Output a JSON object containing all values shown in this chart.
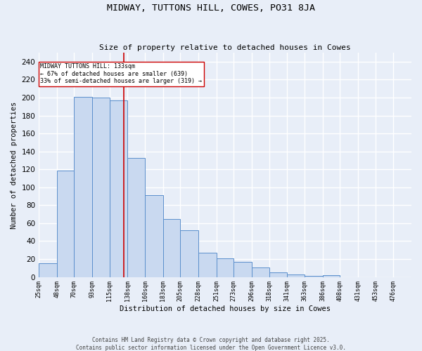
{
  "title": "MIDWAY, TUTTONS HILL, COWES, PO31 8JA",
  "subtitle": "Size of property relative to detached houses in Cowes",
  "xlabel": "Distribution of detached houses by size in Cowes",
  "ylabel": "Number of detached properties",
  "categories": [
    "25sqm",
    "48sqm",
    "70sqm",
    "93sqm",
    "115sqm",
    "138sqm",
    "160sqm",
    "183sqm",
    "205sqm",
    "228sqm",
    "251sqm",
    "273sqm",
    "296sqm",
    "318sqm",
    "341sqm",
    "363sqm",
    "386sqm",
    "408sqm",
    "431sqm",
    "453sqm",
    "476sqm"
  ],
  "bar_values": [
    15,
    119,
    201,
    200,
    197,
    133,
    91,
    65,
    52,
    27,
    21,
    17,
    11,
    5,
    3,
    1,
    2,
    0,
    0,
    0,
    0
  ],
  "bar_color": "#c9d9f0",
  "bar_edge_color": "#5b8fcc",
  "background_color": "#e8eef8",
  "grid_color": "#ffffff",
  "vline_color": "#cc0000",
  "annotation_text": "MIDWAY TUTTONS HILL: 133sqm\n← 67% of detached houses are smaller (639)\n33% of semi-detached houses are larger (319) →",
  "annotation_box_color": "#ffffff",
  "annotation_box_edge": "#cc0000",
  "ylim": [
    0,
    250
  ],
  "yticks": [
    0,
    20,
    40,
    60,
    80,
    100,
    120,
    140,
    160,
    180,
    200,
    220,
    240
  ],
  "footer1": "Contains HM Land Registry data © Crown copyright and database right 2025.",
  "footer2": "Contains public sector information licensed under the Open Government Licence v3.0.",
  "bin_edges": [
    25,
    48,
    70,
    93,
    115,
    138,
    160,
    183,
    205,
    228,
    251,
    273,
    296,
    318,
    341,
    363,
    386,
    408,
    431,
    453,
    476,
    499
  ]
}
